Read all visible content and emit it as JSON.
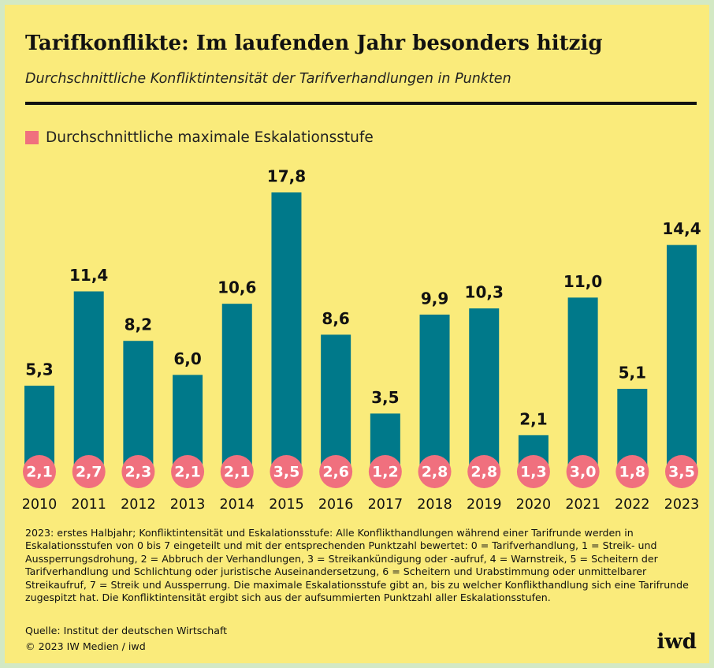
{
  "chart_data": {
    "type": "bar",
    "title": "Tarifkonflikte: Im laufenden Jahr besonders hitzig",
    "subtitle": "Durchschnittliche Konfliktintensität der Tarifverhandlungen in Punkten",
    "categories": [
      "2010",
      "2011",
      "2012",
      "2013",
      "2014",
      "2015",
      "2016",
      "2017",
      "2018",
      "2019",
      "2020",
      "2021",
      "2022",
      "2023"
    ],
    "series": [
      {
        "color": "#00798a",
        "values": [
          5.3,
          11.4,
          8.2,
          6.0,
          10.6,
          17.8,
          8.6,
          3.5,
          9.9,
          10.3,
          2.1,
          11.0,
          5.1,
          14.4
        ],
        "value_labels": [
          "5,3",
          "11,4",
          "8,2",
          "6,0",
          "10,6",
          "17,8",
          "8,6",
          "3,5",
          "9,9",
          "10,3",
          "2,1",
          "11,0",
          "5,1",
          "14,4"
        ]
      },
      {
        "name": "Durchschnittliche maximale Eskalationsstufe",
        "color": "#f0707e",
        "values": [
          2.1,
          2.7,
          2.3,
          2.1,
          2.1,
          3.5,
          2.6,
          1.2,
          2.8,
          2.8,
          1.3,
          3.0,
          1.8,
          3.5
        ],
        "value_labels": [
          "2,1",
          "2,7",
          "2,3",
          "2,1",
          "2,1",
          "3,5",
          "2,6",
          "1,2",
          "2,8",
          "2,8",
          "1,3",
          "3,0",
          "1,8",
          "3,5"
        ]
      }
    ],
    "note": "2023: erstes Halbjahr; Konfliktintensität und Eskalationsstufe: Alle Konflikthandlungen während einer Tarifrunde werden in Eskalationsstufen von 0 bis 7 eingeteilt und mit der entsprechenden Punktzahl bewertet: 0 = Tarifverhandlung, 1 = Streik- und Aussperrungsdrohung, 2 = Abbruch der Verhandlungen, 3 = Streikankündigung oder -aufruf, 4 = Warnstreik, 5 = Scheitern der Tarifverhandlung und Schlichtung oder juristische Auseinandersetzung, 6 = Scheitern und Urabstimmung oder unmittelbarer Streikaufruf, 7 = Streik und Aussperrung. Die maximale Eskalationsstufe gibt an, bis zu welcher Konflikthandlung sich eine Tarifrunde zugespitzt hat. Die Konfliktintensität ergibt sich aus der aufsummierten Punktzahl aller Eskalationsstufen.",
    "source": "Quelle: Institut der deutschen Wirtschaft",
    "copyright": "© 2023 IW Medien / iwd",
    "logo": "iwd"
  }
}
